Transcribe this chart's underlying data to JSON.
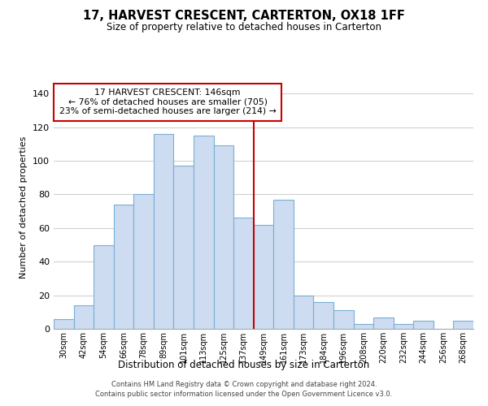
{
  "title": "17, HARVEST CRESCENT, CARTERTON, OX18 1FF",
  "subtitle": "Size of property relative to detached houses in Carterton",
  "xlabel": "Distribution of detached houses by size in Carterton",
  "ylabel": "Number of detached properties",
  "bar_labels": [
    "30sqm",
    "42sqm",
    "54sqm",
    "66sqm",
    "78sqm",
    "89sqm",
    "101sqm",
    "113sqm",
    "125sqm",
    "137sqm",
    "149sqm",
    "161sqm",
    "173sqm",
    "184sqm",
    "196sqm",
    "208sqm",
    "220sqm",
    "232sqm",
    "244sqm",
    "256sqm",
    "268sqm"
  ],
  "bar_values": [
    6,
    14,
    50,
    74,
    80,
    116,
    97,
    115,
    109,
    66,
    62,
    77,
    20,
    16,
    11,
    3,
    7,
    3,
    5,
    0,
    5
  ],
  "bar_color": "#cddcf0",
  "bar_edge_color": "#7aaed6",
  "highlight_line_index": 10,
  "highlight_line_color": "#cc0000",
  "annotation_line1": "17 HARVEST CRESCENT: 146sqm",
  "annotation_line2": "← 76% of detached houses are smaller (705)",
  "annotation_line3": "23% of semi-detached houses are larger (214) →",
  "annotation_box_color": "#ffffff",
  "annotation_box_edge": "#cc0000",
  "ylim": [
    0,
    145
  ],
  "yticks": [
    0,
    20,
    40,
    60,
    80,
    100,
    120,
    140
  ],
  "footnote": "Contains HM Land Registry data © Crown copyright and database right 2024.\nContains public sector information licensed under the Open Government Licence v3.0.",
  "background_color": "#ffffff",
  "grid_color": "#d0d0d0"
}
